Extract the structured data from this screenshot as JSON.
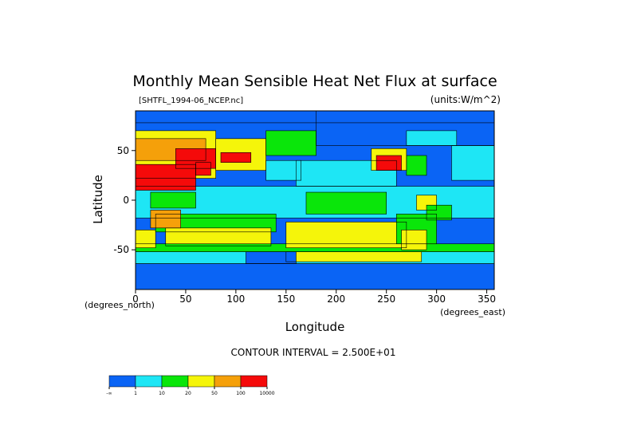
{
  "chart_data": {
    "type": "heatmap",
    "title": "Monthly Mean Sensible Heat Net Flux at surface",
    "file_label": "[SHTFL_1994-06_NCEP.nc]",
    "units_label": "(units:W/m^2)",
    "xlabel": "Longitude",
    "ylabel": "Latitude",
    "x_unit_label": "(degrees_east)",
    "y_unit_label": "(degrees_north)",
    "xlim": [
      0,
      357.5
    ],
    "ylim": [
      -90,
      90
    ],
    "x_ticks": [
      "0",
      "50",
      "100",
      "150",
      "200",
      "250",
      "300",
      "350"
    ],
    "x_tick_values": [
      0,
      50,
      100,
      150,
      200,
      250,
      300,
      350
    ],
    "y_ticks": [
      "50",
      "0",
      "-50"
    ],
    "y_tick_values": [
      50,
      0,
      -50
    ],
    "contour_interval_label": "CONTOUR INTERVAL = 2.500E+01",
    "colorbar": {
      "labels": [
        "-∞",
        "1",
        "10",
        "20",
        "50",
        "100",
        "10000"
      ],
      "colors": [
        "#0a64f5",
        "#1ee6f5",
        "#0ae60a",
        "#f5f50a",
        "#f5a00a",
        "#f50a0a"
      ]
    },
    "regions": [
      {
        "cls": 0,
        "lon": [
          0,
          357.5
        ],
        "lat": [
          -90,
          90
        ]
      },
      {
        "cls": 1,
        "lon": [
          0,
          357.5
        ],
        "lat": [
          -18,
          14
        ]
      },
      {
        "cls": 1,
        "lon": [
          160,
          260
        ],
        "lat": [
          14,
          40
        ]
      },
      {
        "cls": 2,
        "lon": [
          170,
          250
        ],
        "lat": [
          -14,
          8
        ]
      },
      {
        "cls": 2,
        "lon": [
          20,
          140
        ],
        "lat": [
          -32,
          -14
        ]
      },
      {
        "cls": 3,
        "lon": [
          30,
          135
        ],
        "lat": [
          -46,
          -28
        ]
      },
      {
        "cls": 2,
        "lon": [
          0,
          357.5
        ],
        "lat": [
          -52,
          -44
        ]
      },
      {
        "cls": 3,
        "lon": [
          150,
          270
        ],
        "lat": [
          -48,
          -22
        ]
      },
      {
        "cls": 2,
        "lon": [
          260,
          300
        ],
        "lat": [
          -44,
          -14
        ]
      },
      {
        "cls": 3,
        "lon": [
          265,
          290
        ],
        "lat": [
          -50,
          -30
        ]
      },
      {
        "cls": 3,
        "lon": [
          0,
          20
        ],
        "lat": [
          -48,
          -30
        ]
      },
      {
        "cls": 1,
        "lon": [
          0,
          357.5
        ],
        "lat": [
          -64,
          -52
        ]
      },
      {
        "cls": 3,
        "lon": [
          150,
          285
        ],
        "lat": [
          -62,
          -52
        ]
      },
      {
        "cls": 0,
        "lon": [
          0,
          357.5
        ],
        "lat": [
          -90,
          -64
        ]
      },
      {
        "cls": 0,
        "lon": [
          110,
          160
        ],
        "lat": [
          -64,
          -52
        ]
      },
      {
        "cls": 3,
        "lon": [
          0,
          80
        ],
        "lat": [
          22,
          70
        ]
      },
      {
        "cls": 4,
        "lon": [
          0,
          70
        ],
        "lat": [
          40,
          62
        ]
      },
      {
        "cls": 5,
        "lon": [
          0,
          60
        ],
        "lat": [
          10,
          36
        ]
      },
      {
        "cls": 5,
        "lon": [
          40,
          80
        ],
        "lat": [
          32,
          52
        ]
      },
      {
        "cls": 5,
        "lon": [
          60,
          75
        ],
        "lat": [
          25,
          38
        ]
      },
      {
        "cls": 4,
        "lon": [
          15,
          45
        ],
        "lat": [
          -28,
          -10
        ]
      },
      {
        "cls": 2,
        "lon": [
          15,
          60
        ],
        "lat": [
          -8,
          8
        ]
      },
      {
        "cls": 3,
        "lon": [
          80,
          130
        ],
        "lat": [
          30,
          62
        ]
      },
      {
        "cls": 5,
        "lon": [
          85,
          115
        ],
        "lat": [
          38,
          48
        ]
      },
      {
        "cls": 2,
        "lon": [
          130,
          180
        ],
        "lat": [
          45,
          70
        ]
      },
      {
        "cls": 0,
        "lon": [
          180,
          357.5
        ],
        "lat": [
          55,
          90
        ]
      },
      {
        "cls": 1,
        "lon": [
          270,
          320
        ],
        "lat": [
          55,
          70
        ]
      },
      {
        "cls": 3,
        "lon": [
          235,
          270
        ],
        "lat": [
          30,
          52
        ]
      },
      {
        "cls": 5,
        "lon": [
          240,
          265
        ],
        "lat": [
          30,
          45
        ]
      },
      {
        "cls": 2,
        "lon": [
          270,
          290
        ],
        "lat": [
          25,
          45
        ]
      },
      {
        "cls": 3,
        "lon": [
          280,
          300
        ],
        "lat": [
          -10,
          5
        ]
      },
      {
        "cls": 2,
        "lon": [
          290,
          315
        ],
        "lat": [
          -20,
          -5
        ]
      },
      {
        "cls": 1,
        "lon": [
          315,
          357.5
        ],
        "lat": [
          20,
          55
        ]
      },
      {
        "cls": 0,
        "lon": [
          0,
          357.5
        ],
        "lat": [
          78,
          90
        ]
      },
      {
        "cls": 1,
        "lon": [
          130,
          165
        ],
        "lat": [
          20,
          40
        ]
      }
    ]
  }
}
